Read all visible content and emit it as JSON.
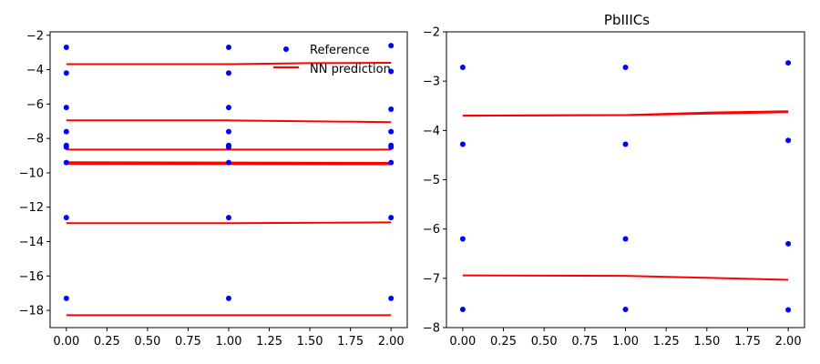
{
  "chart_data": [
    {
      "type": "scatter",
      "title": "",
      "xlabel": "",
      "ylabel": "",
      "xlim": [
        -0.1,
        2.1
      ],
      "ylim": [
        -19,
        -1.8
      ],
      "xticks": [
        0.0,
        0.25,
        0.5,
        0.75,
        1.0,
        1.25,
        1.5,
        1.75,
        2.0
      ],
      "xtick_labels": [
        "0.00",
        "0.25",
        "0.50",
        "0.75",
        "1.00",
        "1.25",
        "1.50",
        "1.75",
        "2.00"
      ],
      "yticks": [
        -18,
        -16,
        -14,
        -12,
        -10,
        -8,
        -6,
        -4,
        -2
      ],
      "ytick_labels": [
        "−18",
        "−16",
        "−14",
        "−12",
        "−10",
        "−8",
        "−6",
        "−4",
        "−2"
      ],
      "grid": false,
      "legend": {
        "placement": "top-right",
        "entries": [
          {
            "label": "Reference",
            "marker": "dot",
            "color": "#0000ff"
          },
          {
            "label": "NN prediction",
            "marker": "line",
            "color": "#ff0000"
          }
        ]
      },
      "series": [
        {
          "name": "Reference",
          "kind": "scatter",
          "color": "#0000ff",
          "points": [
            [
              0,
              -2.7
            ],
            [
              0,
              -4.2
            ],
            [
              0,
              -6.2
            ],
            [
              0,
              -7.6
            ],
            [
              0,
              -8.4
            ],
            [
              0,
              -8.5
            ],
            [
              0,
              -9.4
            ],
            [
              0,
              -12.6
            ],
            [
              0,
              -17.3
            ],
            [
              1,
              -2.7
            ],
            [
              1,
              -4.2
            ],
            [
              1,
              -6.2
            ],
            [
              1,
              -7.6
            ],
            [
              1,
              -8.4
            ],
            [
              1,
              -8.5
            ],
            [
              1,
              -9.4
            ],
            [
              1,
              -12.6
            ],
            [
              1,
              -17.3
            ],
            [
              2,
              -2.6
            ],
            [
              2,
              -4.1
            ],
            [
              2,
              -6.3
            ],
            [
              2,
              -7.6
            ],
            [
              2,
              -8.4
            ],
            [
              2,
              -8.5
            ],
            [
              2,
              -9.4
            ],
            [
              2,
              -12.6
            ],
            [
              2,
              -17.3
            ]
          ]
        },
        {
          "name": "NN prediction",
          "kind": "lines",
          "color": "#ff0000",
          "lines": [
            [
              [
                0,
                -3.68
              ],
              [
                1,
                -3.68
              ],
              [
                1.5,
                -3.62
              ],
              [
                2,
                -3.6
              ]
            ],
            [
              [
                0,
                -6.95
              ],
              [
                1,
                -6.95
              ],
              [
                2,
                -7.05
              ]
            ],
            [
              [
                0,
                -8.65
              ],
              [
                2,
                -8.65
              ]
            ],
            [
              [
                0,
                -9.38
              ],
              [
                2,
                -9.42
              ]
            ],
            [
              [
                0,
                -9.48
              ],
              [
                2,
                -9.5
              ]
            ],
            [
              [
                0,
                -12.93
              ],
              [
                1,
                -12.93
              ],
              [
                2,
                -12.88
              ]
            ],
            [
              [
                0,
                -18.28
              ],
              [
                2,
                -18.28
              ]
            ]
          ]
        }
      ]
    },
    {
      "type": "scatter",
      "title": "PbIIICs",
      "xlabel": "",
      "ylabel": "",
      "xlim": [
        -0.1,
        2.1
      ],
      "ylim": [
        -8,
        -2
      ],
      "xticks": [
        0.0,
        0.25,
        0.5,
        0.75,
        1.0,
        1.25,
        1.5,
        1.75,
        2.0
      ],
      "xtick_labels": [
        "0.00",
        "0.25",
        "0.50",
        "0.75",
        "1.00",
        "1.25",
        "1.50",
        "1.75",
        "2.00"
      ],
      "yticks": [
        -8,
        -7,
        -6,
        -5,
        -4,
        -3,
        -2
      ],
      "ytick_labels": [
        "−8",
        "−7",
        "−6",
        "−5",
        "−4",
        "−3",
        "−2"
      ],
      "grid": false,
      "series": [
        {
          "name": "Reference",
          "kind": "scatter",
          "color": "#0000ff",
          "points": [
            [
              0,
              -2.72
            ],
            [
              0,
              -4.28
            ],
            [
              0,
              -6.2
            ],
            [
              0,
              -7.63
            ],
            [
              1,
              -2.72
            ],
            [
              1,
              -4.28
            ],
            [
              1,
              -6.2
            ],
            [
              1,
              -7.63
            ],
            [
              2,
              -2.63
            ],
            [
              2,
              -4.2
            ],
            [
              2,
              -6.3
            ],
            [
              2,
              -7.64
            ]
          ]
        },
        {
          "name": "NN prediction",
          "kind": "lines",
          "color": "#ff0000",
          "lines": [
            [
              [
                0,
                -3.7
              ],
              [
                1,
                -3.69
              ],
              [
                1.5,
                -3.64
              ],
              [
                2,
                -3.61
              ]
            ],
            [
              [
                0,
                -3.7
              ],
              [
                1,
                -3.69
              ],
              [
                1.5,
                -3.66
              ],
              [
                2,
                -3.63
              ]
            ],
            [
              [
                0,
                -6.94
              ],
              [
                1,
                -6.95
              ],
              [
                1.5,
                -6.99
              ],
              [
                2,
                -7.03
              ]
            ]
          ]
        }
      ]
    }
  ]
}
